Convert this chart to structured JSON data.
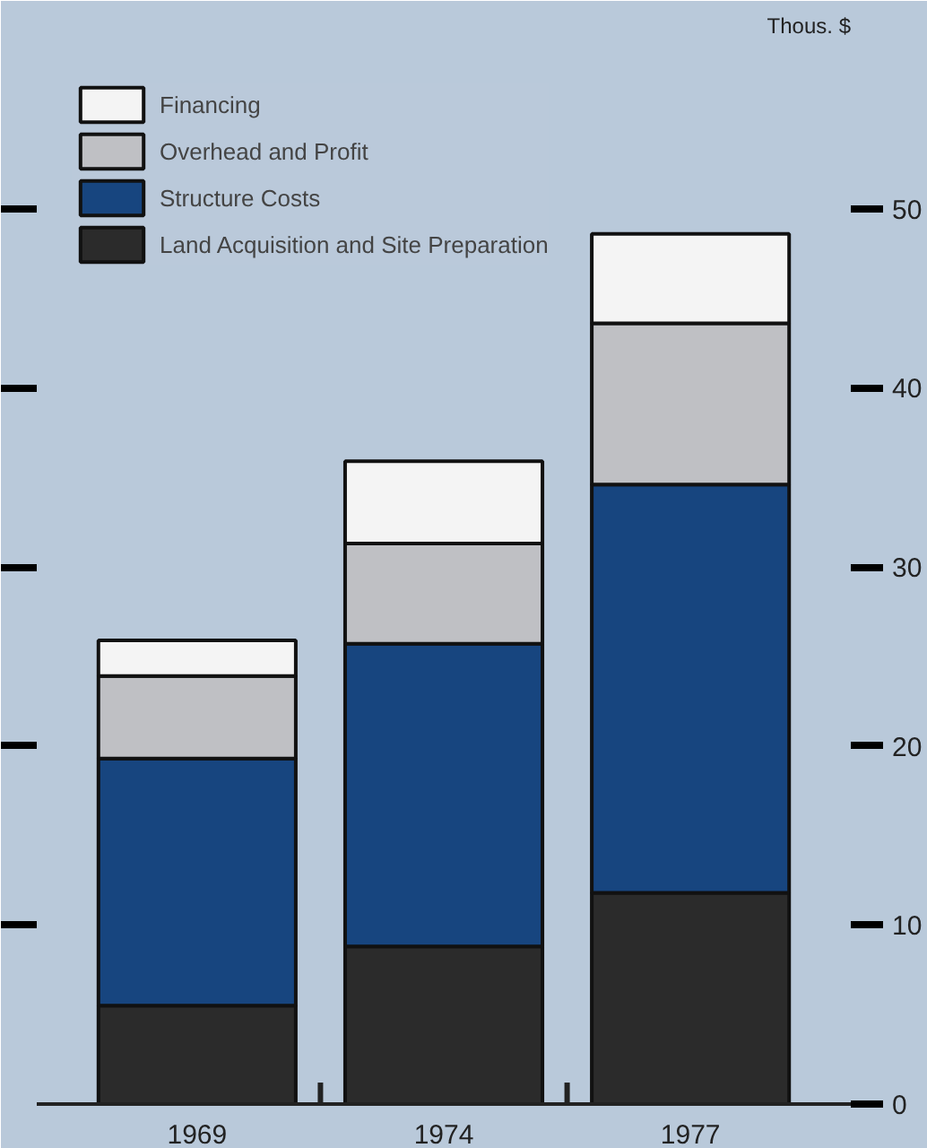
{
  "chart_data": {
    "type": "bar",
    "stacked": true,
    "ylabel": "Thous. $",
    "categories": [
      "1969",
      "1974",
      "1977"
    ],
    "ylim": [
      0,
      59
    ],
    "yticks": [
      0,
      10,
      20,
      30,
      40,
      50
    ],
    "grid": false,
    "legend": "top left",
    "series": [
      {
        "name": "Land Acquisition and Site Preparation",
        "color": "#2b2b2b",
        "values": [
          5.5,
          8.8,
          11.8
        ]
      },
      {
        "name": "Structure Costs",
        "color": "#17457f",
        "values": [
          13.8,
          16.9,
          22.8
        ]
      },
      {
        "name": "Overhead and Profit",
        "color": "#bfc0c4",
        "values": [
          4.6,
          5.6,
          9.0
        ]
      },
      {
        "name": "Financing",
        "color": "#f4f4f4",
        "values": [
          2.0,
          4.6,
          5.0
        ]
      }
    ]
  }
}
